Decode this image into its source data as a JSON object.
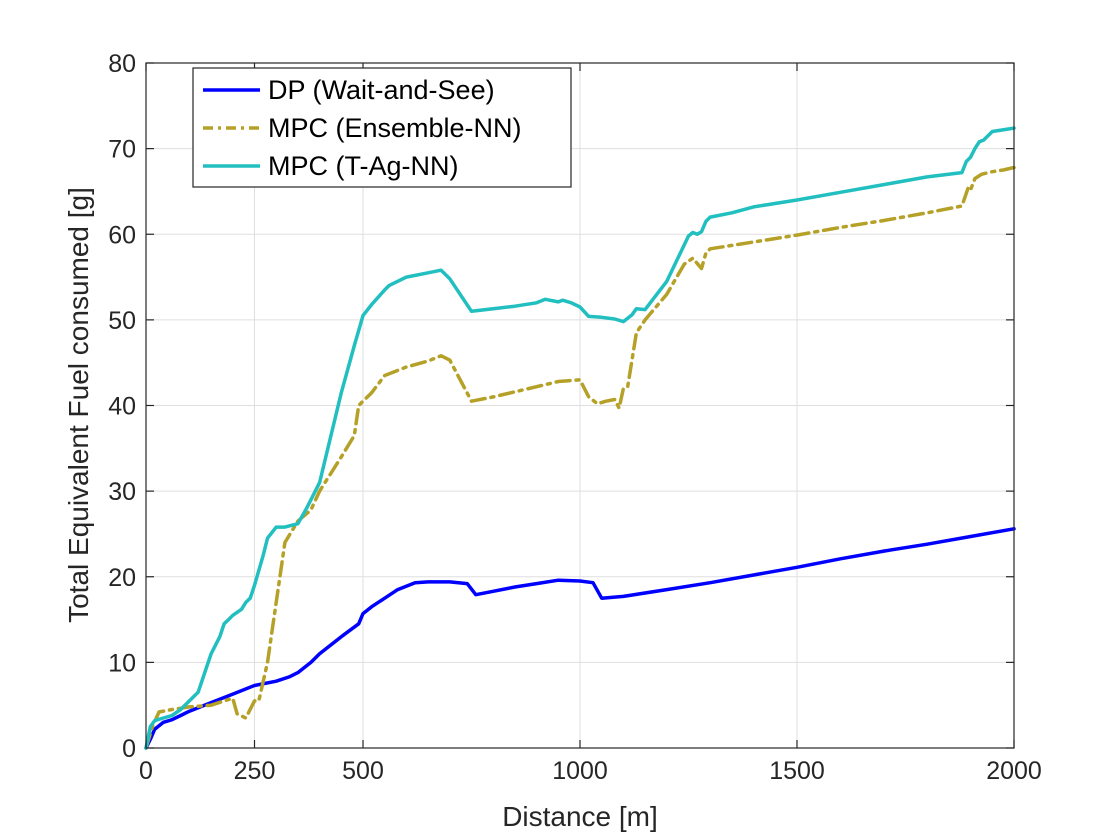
{
  "chart_data": {
    "type": "line",
    "title": "",
    "xlabel": "Distance [m]",
    "ylabel": "Total Equivalent Fuel consumed [g]",
    "xlim": [
      0,
      2000
    ],
    "ylim": [
      0,
      80
    ],
    "xticks": [
      0,
      250,
      500,
      1000,
      1500,
      2000
    ],
    "yticks": [
      0,
      10,
      20,
      30,
      40,
      50,
      60,
      70,
      80
    ],
    "grid": true,
    "legend_position": "top-left",
    "series": [
      {
        "name": "DP (Wait-and-See)",
        "color": "#0000ff",
        "style": "solid",
        "x": [
          0,
          10,
          20,
          40,
          60,
          80,
          100,
          150,
          200,
          250,
          300,
          330,
          350,
          380,
          400,
          450,
          490,
          500,
          520,
          550,
          580,
          620,
          650,
          700,
          740,
          760,
          800,
          850,
          900,
          950,
          1000,
          1030,
          1050,
          1100,
          1200,
          1300,
          1400,
          1500,
          1600,
          1700,
          1800,
          1900,
          2000
        ],
        "y": [
          0,
          1.0,
          2.2,
          3.0,
          3.3,
          3.8,
          4.3,
          5.3,
          6.3,
          7.3,
          7.8,
          8.3,
          8.8,
          10.0,
          11.0,
          13.0,
          14.5,
          15.7,
          16.5,
          17.5,
          18.5,
          19.3,
          19.4,
          19.4,
          19.2,
          17.9,
          18.3,
          18.8,
          19.2,
          19.6,
          19.5,
          19.3,
          17.5,
          17.7,
          18.5,
          19.3,
          20.2,
          21.1,
          22.1,
          23.0,
          23.8,
          24.7,
          25.6
        ]
      },
      {
        "name": "MPC (Ensemble-NN)",
        "color": "#b5a128",
        "style": "dashdot",
        "x": [
          0,
          15,
          30,
          60,
          100,
          150,
          180,
          200,
          210,
          230,
          250,
          260,
          280,
          300,
          320,
          350,
          380,
          400,
          450,
          480,
          490,
          500,
          520,
          550,
          600,
          650,
          680,
          700,
          750,
          800,
          850,
          900,
          950,
          1000,
          1020,
          1040,
          1060,
          1080,
          1090,
          1100,
          1110,
          1130,
          1150,
          1200,
          1240,
          1260,
          1280,
          1290,
          1300,
          1350,
          1400,
          1500,
          1600,
          1700,
          1800,
          1880,
          1895,
          1900,
          1910,
          1925,
          1950,
          1975,
          2000
        ],
        "y": [
          0,
          2.5,
          4.2,
          4.5,
          4.8,
          5.0,
          5.5,
          5.8,
          4.0,
          3.5,
          5.5,
          5.5,
          10.0,
          17.0,
          24.0,
          26.5,
          27.8,
          30.0,
          34.0,
          36.5,
          40.0,
          40.5,
          41.5,
          43.5,
          44.5,
          45.2,
          45.8,
          45.3,
          40.5,
          41.0,
          41.6,
          42.2,
          42.8,
          43.0,
          41.0,
          40.2,
          40.5,
          40.7,
          39.7,
          42.0,
          42.2,
          48.5,
          50.0,
          53.0,
          56.5,
          57.2,
          56.0,
          57.8,
          58.3,
          58.7,
          59.1,
          59.9,
          60.8,
          61.6,
          62.5,
          63.3,
          65.5,
          65.2,
          66.5,
          67.0,
          67.3,
          67.5,
          67.8
        ]
      },
      {
        "name": "MPC (T-Ag-NN)",
        "color": "#22bfc0",
        "style": "solid",
        "x": [
          0,
          10,
          20,
          40,
          60,
          80,
          100,
          120,
          150,
          170,
          180,
          190,
          200,
          220,
          230,
          240,
          250,
          270,
          280,
          300,
          320,
          350,
          370,
          400,
          450,
          480,
          500,
          520,
          550,
          560,
          580,
          600,
          650,
          680,
          700,
          750,
          800,
          850,
          900,
          920,
          950,
          960,
          980,
          1000,
          1020,
          1050,
          1080,
          1100,
          1120,
          1130,
          1150,
          1200,
          1250,
          1260,
          1270,
          1280,
          1290,
          1300,
          1350,
          1400,
          1500,
          1600,
          1700,
          1800,
          1880,
          1890,
          1900,
          1910,
          1920,
          1930,
          1940,
          1950,
          2000
        ],
        "y": [
          0,
          2.5,
          3.2,
          3.5,
          3.8,
          4.5,
          5.5,
          6.5,
          11.0,
          13.0,
          14.5,
          15.0,
          15.5,
          16.2,
          17.0,
          17.5,
          19.0,
          22.5,
          24.5,
          25.8,
          25.8,
          26.2,
          28.0,
          31.0,
          41.5,
          47.0,
          50.5,
          51.8,
          53.5,
          54.0,
          54.5,
          55.0,
          55.5,
          55.8,
          54.8,
          51.0,
          51.3,
          51.6,
          52.0,
          52.4,
          52.1,
          52.3,
          52.0,
          51.5,
          50.4,
          50.3,
          50.1,
          49.8,
          50.6,
          51.3,
          51.2,
          54.5,
          59.8,
          60.2,
          60.0,
          60.3,
          61.5,
          62.0,
          62.5,
          63.2,
          64.0,
          64.9,
          65.8,
          66.7,
          67.2,
          68.5,
          69.0,
          70.0,
          70.8,
          71.0,
          71.5,
          72.0,
          72.4
        ]
      }
    ]
  }
}
